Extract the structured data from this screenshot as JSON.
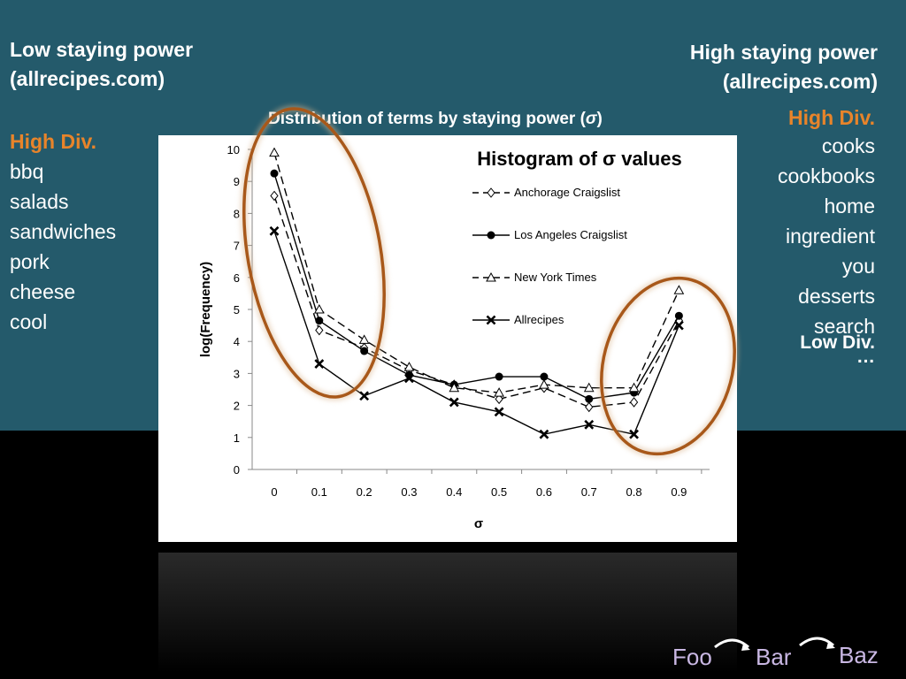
{
  "slide": {
    "left_title_line1": "Low staying power",
    "left_title_line2": "(allrecipes.com)",
    "right_title_line1": "High staying power",
    "right_title_line2": "(allrecipes.com)",
    "dist_title_prefix": "Distribution of terms by staying power (",
    "dist_title_sigma": "σ",
    "dist_title_suffix": ")",
    "left_div_label": "High Div.",
    "left_terms": [
      "bbq",
      "salads",
      "sandwiches",
      "pork",
      "cheese",
      "cool"
    ],
    "right_div_label": "High Div.",
    "right_terms": [
      "cooks",
      "cookbooks",
      "home",
      "ingredient",
      "you",
      "desserts",
      "search"
    ],
    "right_low_label": "Low Div.",
    "right_ellipsis": "…",
    "nav": [
      "Foo",
      "Bar",
      "Baz"
    ],
    "colors": {
      "background": "#245a6b",
      "accent": "#e8842a",
      "ellipse": "#a8581a",
      "nav_text": "#c9b7e3"
    }
  },
  "chart_data": {
    "type": "line",
    "title": "Histogram of σ values",
    "xlabel": "σ",
    "ylabel": "log(Frequency)",
    "ylim": [
      0,
      10
    ],
    "x": [
      0,
      0.1,
      0.2,
      0.3,
      0.4,
      0.5,
      0.6,
      0.7,
      0.8,
      0.9
    ],
    "xtick_labels": [
      "0",
      "0.1",
      "0.2",
      "0.3",
      "0.4",
      "0.5",
      "0.6",
      "0.7",
      "0.8",
      "0.9"
    ],
    "ytick_labels": [
      "0",
      "1",
      "2",
      "3",
      "4",
      "5",
      "6",
      "7",
      "8",
      "9",
      "10"
    ],
    "legend_position": "top-right",
    "grid": false,
    "series": [
      {
        "name": "Anchorage Craigslist",
        "marker": "diamond-open",
        "dash": "dashed",
        "values": [
          8.55,
          4.35,
          3.8,
          3.1,
          2.65,
          2.2,
          2.55,
          1.95,
          2.1,
          4.65
        ]
      },
      {
        "name": "Los Angeles Craigslist",
        "marker": "circle-filled",
        "dash": "solid",
        "values": [
          9.25,
          4.65,
          3.7,
          2.95,
          2.65,
          2.9,
          2.9,
          2.2,
          2.4,
          4.8
        ]
      },
      {
        "name": "New York Times",
        "marker": "triangle-open",
        "dash": "dashed",
        "values": [
          9.9,
          5.0,
          4.05,
          3.2,
          2.55,
          2.4,
          2.65,
          2.55,
          2.55,
          5.6
        ]
      },
      {
        "name": "Allrecipes",
        "marker": "x",
        "dash": "solid",
        "values": [
          7.45,
          3.3,
          2.3,
          2.85,
          2.1,
          1.8,
          1.1,
          1.4,
          1.1,
          4.5
        ]
      }
    ]
  }
}
